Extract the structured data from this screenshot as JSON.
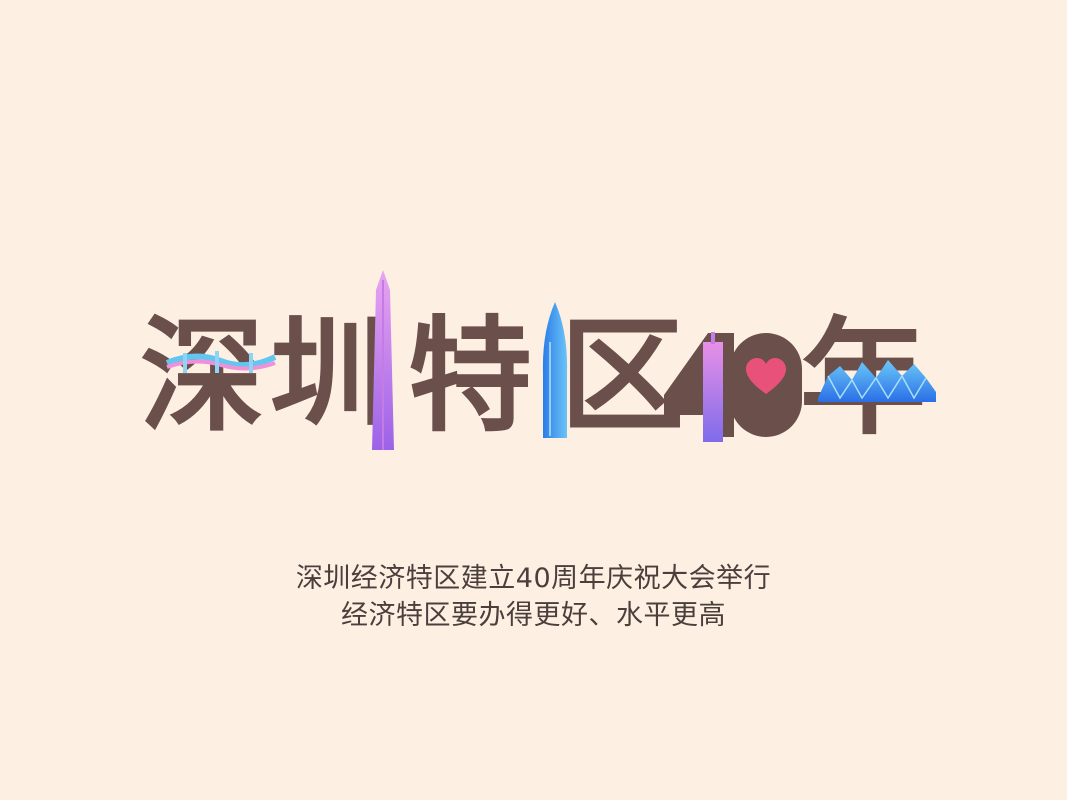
{
  "title": {
    "chars": [
      "深",
      "圳",
      "特",
      "区",
      "年"
    ],
    "number": "40"
  },
  "subtitle": {
    "line1": "深圳经济特区建立40周年庆祝大会举行",
    "line2": "经济特区要办得更好、水平更高"
  },
  "colors": {
    "background": "#FDF0E2",
    "title_text": "#6A4F4B",
    "heart": "#E8527A",
    "tower_pink": "#D77BE8",
    "tower_blue": "#3E9BF2",
    "bridge_blue": "#62C6F0",
    "bridge_pink": "#F190D8",
    "bay_blue": "#2F86F0"
  },
  "icons": {
    "heart": "heart-icon",
    "bridge": "bridge-icon",
    "tower_1": "skyscraper-icon",
    "tower_2": "bullet-tower-icon",
    "tower_3": "building-icon",
    "bay": "crystal-bay-icon"
  }
}
